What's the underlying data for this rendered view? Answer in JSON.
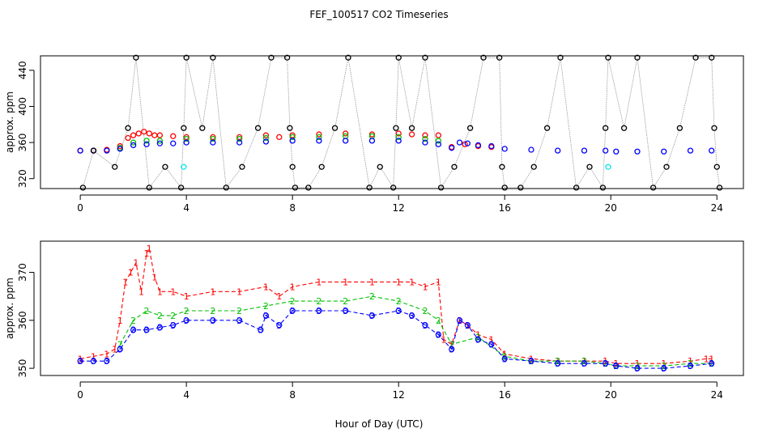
{
  "title": "FEF_100517  CO2 Timeseries",
  "xlabel": "Hour of Day (UTC)",
  "chart_data": [
    {
      "type": "scatter",
      "panel": "top",
      "ylabel": "approx. ppm",
      "xlim": [
        -1.5,
        25
      ],
      "ylim": [
        309,
        456
      ],
      "xticks": [
        0,
        4,
        8,
        12,
        16,
        20,
        24
      ],
      "yticks": [
        320,
        360,
        400,
        440
      ],
      "colors": {
        "red": "#ff0000",
        "green": "#00c000",
        "blue": "#0000ff",
        "black": "#000000",
        "cyan": "#00e5ee",
        "line": "#999999"
      },
      "series": [
        {
          "color": "red",
          "points": [
            [
              0.0,
              351
            ],
            [
              0.5,
              351
            ],
            [
              1.0,
              352
            ],
            [
              1.5,
              356
            ],
            [
              1.8,
              365
            ],
            [
              2.0,
              368
            ],
            [
              2.2,
              370
            ],
            [
              2.4,
              372
            ],
            [
              2.6,
              370
            ],
            [
              2.8,
              368
            ],
            [
              3.0,
              368
            ],
            [
              3.5,
              367
            ],
            [
              4.0,
              366
            ],
            [
              5.0,
              366
            ],
            [
              6.0,
              366
            ],
            [
              7.0,
              368
            ],
            [
              7.5,
              366
            ],
            [
              8.0,
              368
            ],
            [
              9.0,
              369
            ],
            [
              10.0,
              370
            ],
            [
              11.0,
              369
            ],
            [
              12.0,
              370
            ],
            [
              12.5,
              369
            ],
            [
              13.0,
              368
            ],
            [
              13.5,
              368
            ],
            [
              14.0,
              355
            ],
            [
              14.5,
              358
            ],
            [
              15.0,
              356
            ],
            [
              15.5,
              355
            ]
          ]
        },
        {
          "color": "green",
          "points": [
            [
              1.5,
              354
            ],
            [
              2.0,
              360
            ],
            [
              2.5,
              362
            ],
            [
              3.0,
              362
            ],
            [
              4.0,
              364
            ],
            [
              5.0,
              364
            ],
            [
              6.0,
              364
            ],
            [
              7.0,
              365
            ],
            [
              8.0,
              366
            ],
            [
              9.0,
              366
            ],
            [
              10.0,
              367
            ],
            [
              11.0,
              367
            ],
            [
              12.0,
              366
            ],
            [
              13.0,
              364
            ],
            [
              13.5,
              362
            ]
          ]
        },
        {
          "color": "blue",
          "points": [
            [
              0.0,
              351
            ],
            [
              0.5,
              351
            ],
            [
              1.0,
              351
            ],
            [
              1.5,
              353
            ],
            [
              2.0,
              357
            ],
            [
              2.5,
              358
            ],
            [
              3.0,
              359
            ],
            [
              3.5,
              359
            ],
            [
              4.0,
              360
            ],
            [
              5.0,
              360
            ],
            [
              6.0,
              360
            ],
            [
              7.0,
              361
            ],
            [
              8.0,
              362
            ],
            [
              9.0,
              362
            ],
            [
              10.0,
              362
            ],
            [
              11.0,
              362
            ],
            [
              12.0,
              362
            ],
            [
              13.0,
              360
            ],
            [
              13.5,
              358
            ],
            [
              14.0,
              354
            ],
            [
              14.3,
              360
            ],
            [
              14.6,
              359
            ],
            [
              15.0,
              357
            ],
            [
              15.5,
              356
            ],
            [
              16.0,
              353
            ],
            [
              17.0,
              352
            ],
            [
              18.0,
              351
            ],
            [
              19.0,
              351
            ],
            [
              19.8,
              351
            ],
            [
              20.2,
              350
            ],
            [
              21.0,
              350
            ],
            [
              22.0,
              350
            ],
            [
              23.0,
              351
            ],
            [
              23.8,
              351
            ]
          ]
        },
        {
          "color": "black",
          "points": [
            [
              0.1,
              310
            ],
            [
              0.5,
              351
            ],
            [
              1.3,
              333
            ],
            [
              1.8,
              376
            ],
            [
              2.1,
              454
            ],
            [
              2.6,
              310
            ],
            [
              3.2,
              333
            ],
            [
              3.8,
              310
            ],
            [
              3.9,
              376
            ],
            [
              4.0,
              454
            ],
            [
              4.6,
              376
            ],
            [
              5.0,
              454
            ],
            [
              5.5,
              310
            ],
            [
              6.1,
              333
            ],
            [
              6.7,
              376
            ],
            [
              7.2,
              454
            ],
            [
              7.8,
              454
            ],
            [
              7.9,
              376
            ],
            [
              8.0,
              333
            ],
            [
              8.1,
              310
            ],
            [
              8.6,
              310
            ],
            [
              9.1,
              333
            ],
            [
              9.6,
              376
            ],
            [
              10.1,
              454
            ],
            [
              10.9,
              310
            ],
            [
              11.3,
              333
            ],
            [
              11.8,
              310
            ],
            [
              11.9,
              376
            ],
            [
              12.0,
              454
            ],
            [
              12.5,
              376
            ],
            [
              13.0,
              454
            ],
            [
              13.6,
              310
            ],
            [
              14.1,
              333
            ],
            [
              14.7,
              376
            ],
            [
              15.2,
              454
            ],
            [
              15.8,
              454
            ],
            [
              15.9,
              333
            ],
            [
              16.0,
              310
            ],
            [
              16.6,
              310
            ],
            [
              17.1,
              333
            ],
            [
              17.6,
              376
            ],
            [
              18.1,
              454
            ],
            [
              18.7,
              310
            ],
            [
              19.2,
              333
            ],
            [
              19.7,
              310
            ],
            [
              19.8,
              376
            ],
            [
              19.9,
              454
            ],
            [
              20.5,
              376
            ],
            [
              21.0,
              454
            ],
            [
              21.6,
              310
            ],
            [
              22.1,
              333
            ],
            [
              22.6,
              376
            ],
            [
              23.2,
              454
            ],
            [
              23.8,
              454
            ],
            [
              23.9,
              376
            ],
            [
              24.0,
              333
            ],
            [
              24.1,
              310
            ]
          ]
        },
        {
          "color": "cyan",
          "points": [
            [
              3.9,
              333
            ],
            [
              19.9,
              333
            ]
          ]
        }
      ]
    },
    {
      "type": "line",
      "panel": "bottom",
      "ylabel": "approx. ppm",
      "xlim": [
        -1.5,
        25
      ],
      "ylim": [
        348.5,
        376.5
      ],
      "xticks": [
        0,
        4,
        8,
        12,
        16,
        20,
        24
      ],
      "yticks": [
        350,
        360,
        370
      ],
      "series": [
        {
          "name": "1",
          "color": "red",
          "points": [
            [
              0.0,
              352
            ],
            [
              0.5,
              352.5
            ],
            [
              1.0,
              353
            ],
            [
              1.3,
              354
            ],
            [
              1.5,
              360
            ],
            [
              1.7,
              368
            ],
            [
              1.9,
              370
            ],
            [
              2.1,
              372
            ],
            [
              2.3,
              366
            ],
            [
              2.5,
              374
            ],
            [
              2.6,
              375
            ],
            [
              2.8,
              369
            ],
            [
              3.0,
              366
            ],
            [
              3.5,
              366
            ],
            [
              4.0,
              365
            ],
            [
              5.0,
              366
            ],
            [
              6.0,
              366
            ],
            [
              7.0,
              367
            ],
            [
              7.5,
              365
            ],
            [
              8.0,
              367
            ],
            [
              9.0,
              368
            ],
            [
              10.0,
              368
            ],
            [
              11.0,
              368
            ],
            [
              12.0,
              368
            ],
            [
              12.5,
              368
            ],
            [
              13.0,
              367
            ],
            [
              13.5,
              368
            ],
            [
              13.7,
              356
            ],
            [
              14.0,
              355
            ],
            [
              14.3,
              360
            ],
            [
              14.6,
              359
            ],
            [
              15.0,
              357
            ],
            [
              15.5,
              356
            ],
            [
              16.0,
              353
            ],
            [
              17.0,
              352
            ],
            [
              18.0,
              351.5
            ],
            [
              19.0,
              351.5
            ],
            [
              19.8,
              351.5
            ],
            [
              20.2,
              351
            ],
            [
              21.0,
              351
            ],
            [
              22.0,
              351
            ],
            [
              23.0,
              351.5
            ],
            [
              23.6,
              352
            ],
            [
              23.8,
              352
            ]
          ]
        },
        {
          "name": "2",
          "color": "green",
          "points": [
            [
              1.5,
              355
            ],
            [
              2.0,
              360
            ],
            [
              2.5,
              362
            ],
            [
              3.0,
              361
            ],
            [
              3.5,
              361
            ],
            [
              4.0,
              362
            ],
            [
              5.0,
              362
            ],
            [
              6.0,
              362
            ],
            [
              7.0,
              363
            ],
            [
              8.0,
              364
            ],
            [
              9.0,
              364
            ],
            [
              10.0,
              364
            ],
            [
              11.0,
              365
            ],
            [
              12.0,
              364
            ],
            [
              13.0,
              362
            ],
            [
              13.5,
              360
            ],
            [
              14.0,
              355
            ],
            [
              15.0,
              356.5
            ],
            [
              16.0,
              352.5
            ],
            [
              17.0,
              351.5
            ],
            [
              18.0,
              351.5
            ],
            [
              19.0,
              351.5
            ],
            [
              19.8,
              351
            ],
            [
              20.2,
              350.5
            ],
            [
              21.0,
              350.5
            ],
            [
              22.0,
              350.5
            ],
            [
              23.0,
              351
            ],
            [
              23.8,
              351
            ]
          ]
        },
        {
          "name": "3",
          "color": "blue",
          "points": [
            [
              0.0,
              351.5
            ],
            [
              0.5,
              351.5
            ],
            [
              1.0,
              351.5
            ],
            [
              1.5,
              354
            ],
            [
              2.0,
              358
            ],
            [
              2.5,
              358
            ],
            [
              3.0,
              358.5
            ],
            [
              3.5,
              359
            ],
            [
              4.0,
              360
            ],
            [
              5.0,
              360
            ],
            [
              6.0,
              360
            ],
            [
              6.8,
              358
            ],
            [
              7.0,
              361
            ],
            [
              7.5,
              359
            ],
            [
              8.0,
              362
            ],
            [
              9.0,
              362
            ],
            [
              10.0,
              362
            ],
            [
              11.0,
              361
            ],
            [
              12.0,
              362
            ],
            [
              12.5,
              361
            ],
            [
              13.0,
              359
            ],
            [
              13.5,
              357
            ],
            [
              14.0,
              354
            ],
            [
              14.3,
              360
            ],
            [
              14.6,
              359
            ],
            [
              15.0,
              356
            ],
            [
              15.5,
              355
            ],
            [
              16.0,
              352
            ],
            [
              17.0,
              351.5
            ],
            [
              18.0,
              351
            ],
            [
              19.0,
              351
            ],
            [
              19.8,
              351
            ],
            [
              20.2,
              350.5
            ],
            [
              21.0,
              350
            ],
            [
              22.0,
              350
            ],
            [
              23.0,
              350.5
            ],
            [
              23.8,
              351
            ]
          ]
        }
      ]
    }
  ]
}
